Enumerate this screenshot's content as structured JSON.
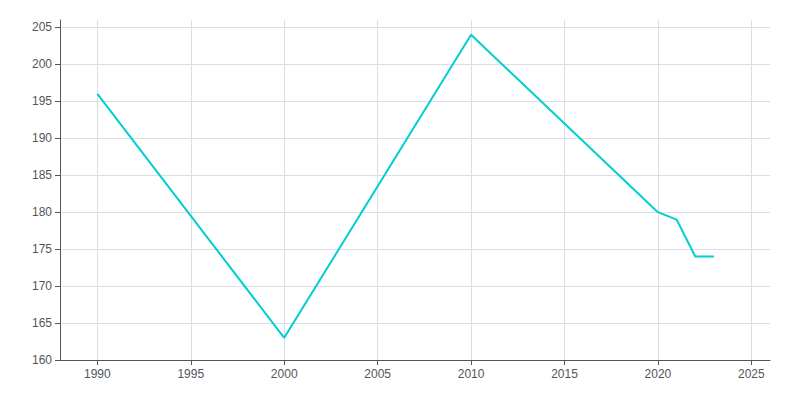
{
  "chart_data": {
    "type": "line",
    "x": [
      1990,
      2000,
      2010,
      2020,
      2021,
      2022,
      2023
    ],
    "values": [
      196,
      163,
      204,
      180,
      179,
      174,
      174
    ],
    "color": "#00CED1",
    "xlim": [
      1988,
      2026
    ],
    "ylim": [
      160,
      206
    ],
    "xticks": [
      1990,
      1995,
      2000,
      2005,
      2010,
      2015,
      2020,
      2025
    ],
    "yticks": [
      160,
      165,
      170,
      175,
      180,
      185,
      190,
      195,
      200,
      205
    ],
    "grid": true
  }
}
